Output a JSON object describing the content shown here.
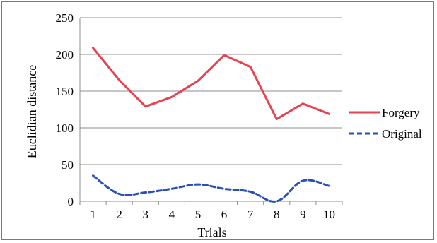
{
  "chart_data": {
    "type": "line",
    "title": "",
    "xlabel": "Trials",
    "ylabel": "Euclidian distance",
    "categories": [
      "1",
      "2",
      "3",
      "4",
      "5",
      "6",
      "7",
      "8",
      "9",
      "10"
    ],
    "ylim": [
      0,
      250
    ],
    "yticks": [
      0,
      50,
      100,
      150,
      200,
      250
    ],
    "grid": "horizontal",
    "legend_position": "right",
    "series": [
      {
        "name": "Forgery",
        "color": "#e8414f",
        "style": "solid",
        "values": [
          209,
          165,
          129,
          142,
          164,
          199,
          183,
          112,
          133,
          119
        ]
      },
      {
        "name": "Original",
        "color": "#2a4fb5",
        "style": "dashed",
        "values": [
          35,
          10,
          12,
          17,
          23,
          17,
          13,
          0,
          28,
          21
        ]
      }
    ]
  }
}
